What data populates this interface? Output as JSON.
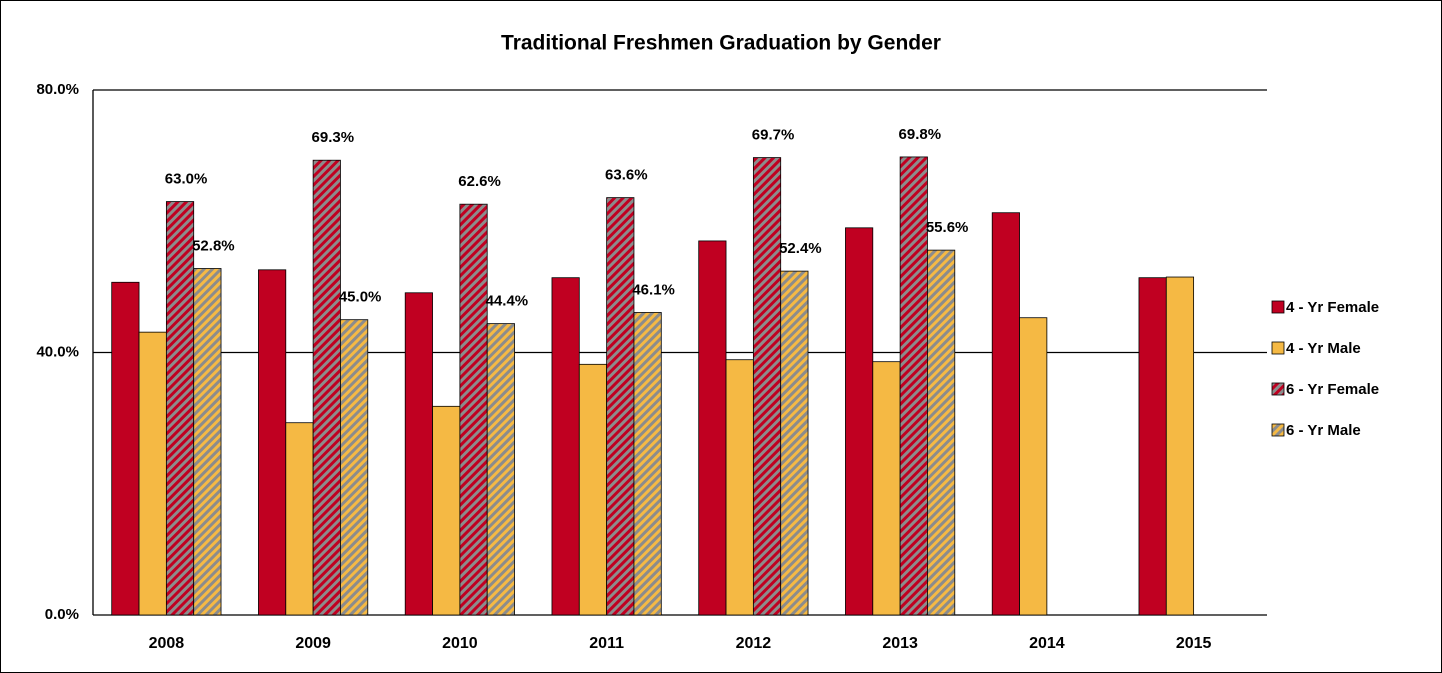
{
  "chart_data": {
    "type": "bar",
    "title": "Traditional Freshmen Graduation by Gender",
    "categories": [
      "2008",
      "2009",
      "2010",
      "2011",
      "2012",
      "2013",
      "2014",
      "2015"
    ],
    "series": [
      {
        "name": "4 - Yr Female",
        "color": "#c00021",
        "values": [
          50.7,
          52.6,
          49.1,
          51.4,
          57.0,
          59.0,
          61.3,
          51.4
        ]
      },
      {
        "name": "4 - Yr Male",
        "color": "#f5b944",
        "values": [
          43.1,
          29.3,
          31.8,
          38.2,
          38.9,
          38.6,
          45.3,
          51.5
        ]
      },
      {
        "name": "6 - Yr Female",
        "color": "#c00021",
        "hatch": "#8c8c8c",
        "values": [
          63.0,
          69.3,
          62.6,
          63.6,
          69.7,
          69.8,
          null,
          null
        ],
        "value_labels": [
          "63.0%",
          "69.3%",
          "62.6%",
          "63.6%",
          "69.7%",
          "69.8%",
          null,
          null
        ]
      },
      {
        "name": "6 - Yr Male",
        "color": "#8c8c8c",
        "hatch": "#f5b944",
        "values": [
          52.8,
          45.0,
          44.4,
          46.1,
          52.4,
          55.6,
          null,
          null
        ],
        "value_labels": [
          "52.8%",
          "45.0%",
          "44.4%",
          "46.1%",
          "52.4%",
          "55.6%",
          null,
          null
        ]
      }
    ],
    "ylim": [
      0,
      80
    ],
    "yticks": [
      {
        "value": 0,
        "label": "0.0%"
      },
      {
        "value": 40,
        "label": "40.0%"
      },
      {
        "value": 80,
        "label": "80.0%"
      }
    ],
    "grid": true,
    "legend": "right"
  }
}
